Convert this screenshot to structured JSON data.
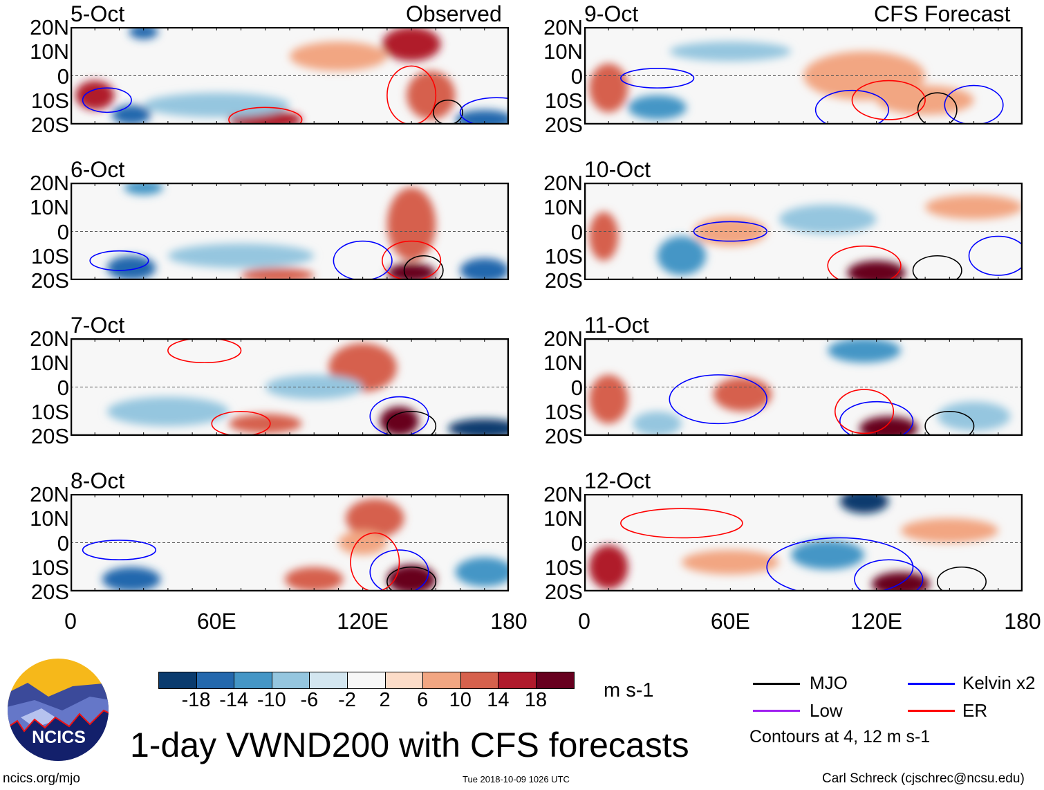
{
  "header": {
    "left_title": "Observed",
    "right_title": "CFS Forecast"
  },
  "panels": {
    "left": [
      {
        "date": "5-Oct"
      },
      {
        "date": "6-Oct"
      },
      {
        "date": "7-Oct"
      },
      {
        "date": "8-Oct"
      }
    ],
    "right": [
      {
        "date": "9-Oct"
      },
      {
        "date": "10-Oct"
      },
      {
        "date": "11-Oct"
      },
      {
        "date": "12-Oct"
      }
    ]
  },
  "y_axis": [
    "20N",
    "10N",
    "0",
    "10S",
    "20S"
  ],
  "x_axis": [
    "0",
    "60E",
    "120E",
    "180"
  ],
  "colorbar": {
    "colors": [
      "#0a3b6e",
      "#2468ad",
      "#4596c6",
      "#95c6df",
      "#d3e6f0",
      "#f7f7f7",
      "#fcdcc8",
      "#f2a682",
      "#d6614d",
      "#b01a2c",
      "#67001f"
    ],
    "labels": [
      "-18",
      "-14",
      "-10",
      "-6",
      "-2",
      "2",
      "6",
      "10",
      "14",
      "18"
    ],
    "units": "m s-1"
  },
  "legend": {
    "items": [
      {
        "label": "MJO",
        "color": "#000000"
      },
      {
        "label": "Kelvin x2",
        "color": "#0000ff"
      },
      {
        "label": "Low",
        "color": "#a020f0"
      },
      {
        "label": "ER",
        "color": "#ff0000"
      }
    ],
    "note": "Contours at 4, 12 m s-1"
  },
  "logo": {
    "text": "NCICS"
  },
  "title": "1-day VWND200 with CFS forecasts",
  "footer": {
    "url": "ncics.org/mjo",
    "timestamp": "Tue 2018-10-09 1026 UTC",
    "credit": "Carl Schreck (cjschrec@ncsu.edu)"
  }
}
